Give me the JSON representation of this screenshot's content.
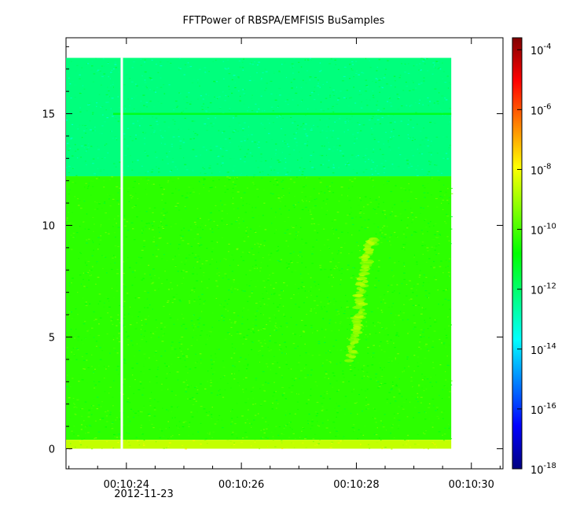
{
  "chart_data": {
    "type": "heatmap",
    "title": "FFTPower of RBSPA/EMFISIS  BuSamples",
    "xlabel": "",
    "ylabel": "",
    "x_date_label": "2012-11-23",
    "x_ticks": [
      {
        "value": 24.0,
        "label": "00:10:24"
      },
      {
        "value": 26.0,
        "label": "00:10:26"
      },
      {
        "value": 28.0,
        "label": "00:10:28"
      },
      {
        "value": 30.0,
        "label": "00:10:30"
      }
    ],
    "xlim": [
      22.95,
      30.55
    ],
    "y_ticks": [
      0,
      5,
      10,
      15
    ],
    "ylim": [
      -0.9,
      18.4
    ],
    "data_x_range": [
      22.95,
      29.65
    ],
    "data_y_range": [
      0,
      17.5
    ],
    "gap_x": 23.92,
    "colorbar": {
      "scale": "log",
      "range_exponents": [
        -18,
        -3.6
      ],
      "tick_exponents": [
        -4,
        -6,
        -8,
        -10,
        -12,
        -14,
        -16,
        -18
      ],
      "colormap": [
        "#000080",
        "#0000ff",
        "#0080ff",
        "#00ffff",
        "#00ff80",
        "#00ff00",
        "#80ff00",
        "#ffff00",
        "#ff8000",
        "#ff0000",
        "#800000"
      ]
    },
    "bands": [
      {
        "name": "upper",
        "y_range": [
          12.2,
          17.5
        ],
        "level_exponent": -12.2
      },
      {
        "name": "lower",
        "y_range": [
          0.4,
          12.2
        ],
        "level_exponent": -10.3
      },
      {
        "name": "base",
        "y_range": [
          0,
          0.4
        ],
        "level_exponent": -8.6
      }
    ],
    "line_15": {
      "y": 15.0,
      "level_exponent": -11.0
    },
    "feature": {
      "description": "whistler-like emission",
      "points": [
        {
          "x": 27.9,
          "y": 4.0
        },
        {
          "x": 28.05,
          "y": 6.0
        },
        {
          "x": 28.1,
          "y": 7.5
        },
        {
          "x": 28.2,
          "y": 8.8
        },
        {
          "x": 28.3,
          "y": 9.4
        }
      ],
      "level_exponent": -9.0
    }
  }
}
